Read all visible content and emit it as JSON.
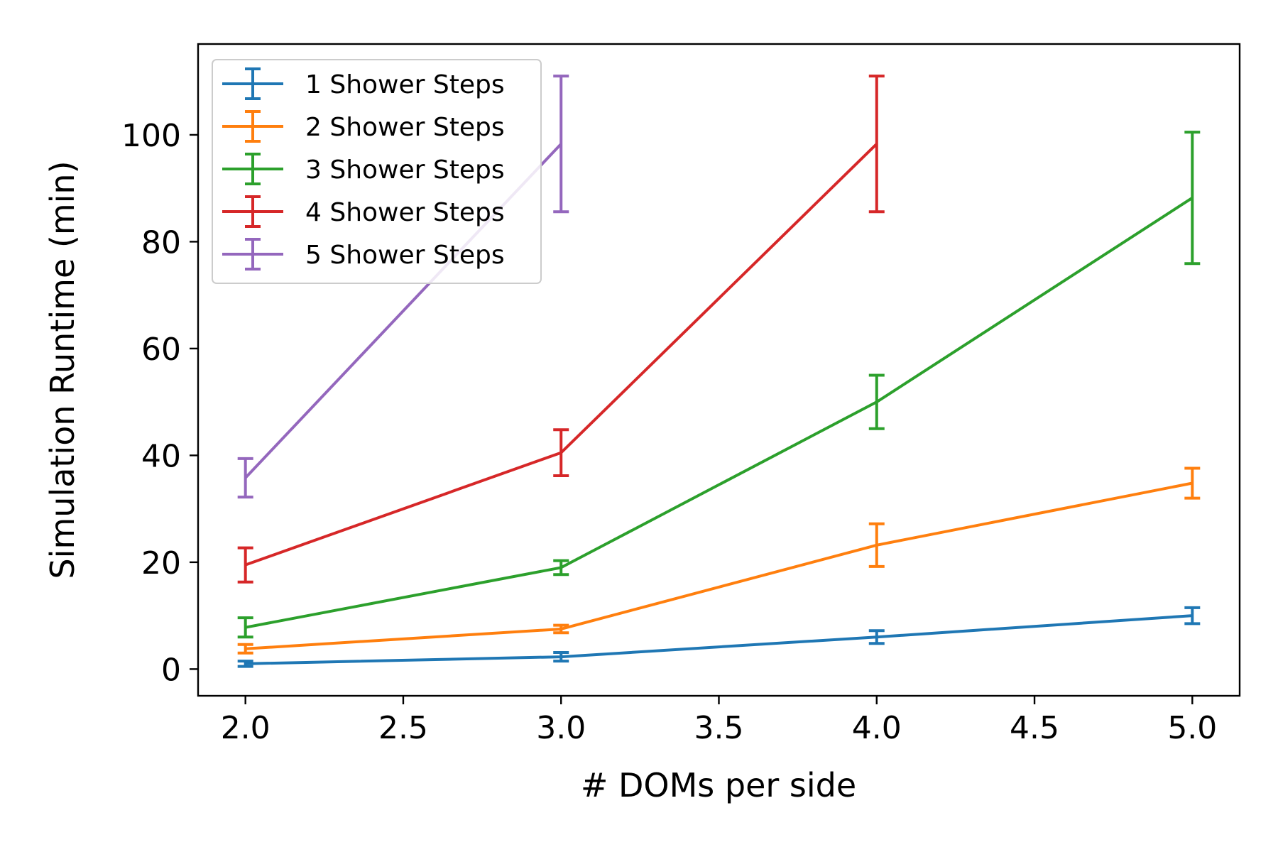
{
  "chart_data": {
    "type": "line",
    "title": "",
    "xlabel": "# DOMs per side",
    "ylabel": "Simulation Runtime (min)",
    "xlim": [
      1.85,
      5.15
    ],
    "ylim": [
      -5,
      117
    ],
    "xticks": [
      2.0,
      2.5,
      3.0,
      3.5,
      4.0,
      4.5,
      5.0
    ],
    "xtick_labels": [
      "2.0",
      "2.5",
      "3.0",
      "3.5",
      "4.0",
      "4.5",
      "5.0"
    ],
    "yticks": [
      0,
      20,
      40,
      60,
      80,
      100
    ],
    "ytick_labels": [
      "0",
      "20",
      "40",
      "60",
      "80",
      "100"
    ],
    "grid": false,
    "legend_position": "top-left",
    "series": [
      {
        "name": "1 Shower Steps",
        "color": "#1f77b4",
        "x": [
          2,
          3,
          4,
          5
        ],
        "y": [
          1.0,
          2.3,
          6.0,
          10.0
        ],
        "err": [
          0.5,
          0.8,
          1.2,
          1.5
        ]
      },
      {
        "name": "2 Shower Steps",
        "color": "#ff7f0e",
        "x": [
          2,
          3,
          4,
          5
        ],
        "y": [
          3.8,
          7.5,
          23.2,
          34.8
        ],
        "err": [
          0.8,
          0.7,
          4.0,
          2.8
        ]
      },
      {
        "name": "3 Shower Steps",
        "color": "#2ca02c",
        "x": [
          2,
          3,
          4,
          5
        ],
        "y": [
          7.8,
          19.0,
          50.0,
          88.2
        ],
        "err": [
          1.8,
          1.3,
          5.0,
          12.3
        ]
      },
      {
        "name": "4 Shower Steps",
        "color": "#d62728",
        "x": [
          2,
          3,
          4,
          5
        ],
        "y": [
          19.5,
          40.5,
          98.3,
          null
        ],
        "err": [
          3.2,
          4.3,
          12.7,
          null
        ]
      },
      {
        "name": "5 Shower Steps",
        "color": "#9467bd",
        "x": [
          2,
          3
        ],
        "y": [
          35.8,
          98.3
        ],
        "err": [
          3.6,
          12.7
        ]
      }
    ]
  }
}
